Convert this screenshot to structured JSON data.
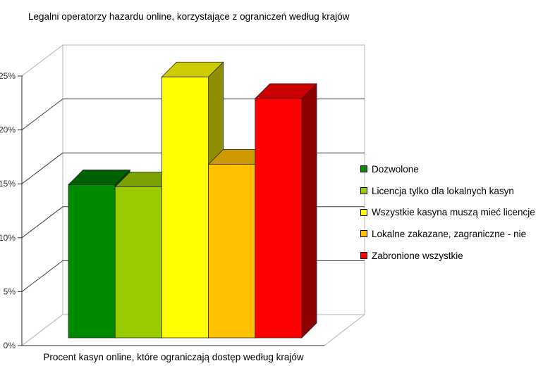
{
  "chart_data": {
    "type": "bar",
    "projection": "3d-oblique",
    "title": "Legalni operatorzy hazardu online, korzystające z ograniczeń według krajów",
    "xlabel": "Procent kasyn online, które ograniczają dostęp według krajów",
    "ylabel": "",
    "unit": "%",
    "categories": [
      "Dozwolone",
      "Licencja tylko dla lokalnych kasyn",
      "Wszystkie kasyna muszą mieć licencje",
      "Lokalne zakazane, zagraniczne - nie",
      "Zabronione wszystkie"
    ],
    "values": [
      14.2,
      14.0,
      24.2,
      16.1,
      22.2
    ],
    "ylim": [
      0,
      25
    ],
    "ytick_step": 5,
    "ytick_labels": [
      "0%",
      "5%",
      "10%",
      "15%",
      "20%",
      "25%"
    ],
    "grid": true,
    "legend_position": "right",
    "colors": {
      "front": [
        "#008A00",
        "#99CC00",
        "#FFFF00",
        "#FFC000",
        "#FF0000"
      ],
      "top": [
        "#006100",
        "#7AA300",
        "#CCCC00",
        "#CC9900",
        "#CC0000"
      ],
      "side": [
        "#004800",
        "#5B7A00",
        "#8F8F00",
        "#8F6B00",
        "#8F0000"
      ],
      "grid_line": "#404040",
      "axis_line": "#303030",
      "wall_edge": "#b3b3b3",
      "bar_edge": "#262626",
      "tick_text": "#333333",
      "background": "#ffffff"
    }
  }
}
